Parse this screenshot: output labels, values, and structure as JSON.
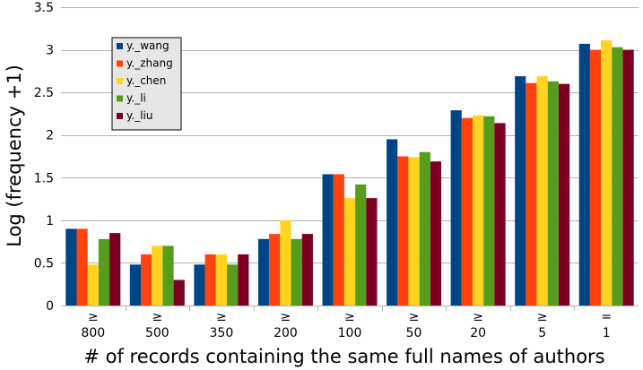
{
  "chart_data": {
    "type": "bar",
    "categories": [
      "800",
      "500",
      "350",
      "200",
      "100",
      "50",
      "20",
      "5",
      "1"
    ],
    "category_prefixes": [
      "≥",
      "≥",
      "≥",
      "≥",
      "≥",
      "≥",
      "≥",
      "≥",
      "="
    ],
    "series": [
      {
        "name": "y._wang",
        "color": "#004586",
        "values": [
          0.9,
          0.48,
          0.48,
          0.78,
          1.54,
          1.95,
          2.29,
          2.69,
          3.07
        ]
      },
      {
        "name": "y._zhang",
        "color": "#ff420e",
        "values": [
          0.9,
          0.6,
          0.6,
          0.84,
          1.54,
          1.75,
          2.2,
          2.61,
          3.0
        ]
      },
      {
        "name": "y._chen",
        "color": "#ffd320",
        "values": [
          0.48,
          0.7,
          0.6,
          1.0,
          1.26,
          1.74,
          2.23,
          2.69,
          3.11
        ]
      },
      {
        "name": "y._li",
        "color": "#579d1c",
        "values": [
          0.78,
          0.7,
          0.48,
          0.78,
          1.42,
          1.8,
          2.22,
          2.63,
          3.03
        ]
      },
      {
        "name": "y._liu",
        "color": "#7e0021",
        "values": [
          0.85,
          0.3,
          0.6,
          0.84,
          1.26,
          1.69,
          2.14,
          2.6,
          3.0
        ]
      }
    ],
    "title": "",
    "xlabel": "# of records containing the same full names of authors",
    "ylabel": "Log (frequency +1)",
    "ylim": [
      0,
      3.5
    ],
    "yticks": [
      "0",
      "0.5",
      "1",
      "1.5",
      "2",
      "2.5",
      "3",
      "3.5"
    ],
    "grid": true,
    "legend_position": "top-left"
  }
}
